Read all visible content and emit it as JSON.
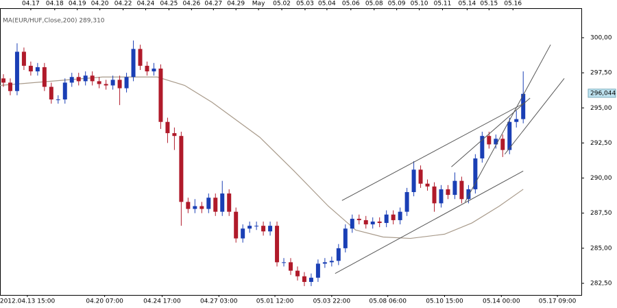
{
  "chart_data": {
    "type": "candlestick",
    "indicator_label": "MA(EUR/HUF,Close,200) 289,310",
    "last_price": {
      "value": 296.044,
      "label": "296,044"
    },
    "up_color": "#1a3fb5",
    "down_color": "#b01a2a",
    "ma_color": "#a89a8a",
    "trendline_color": "#555555",
    "grid": false,
    "xlim": [
      0,
      85
    ],
    "ylim": [
      281.67,
      302.1
    ],
    "yticks": [
      {
        "value": 282.5,
        "label": "282,50"
      },
      {
        "value": 285,
        "label": "285,00"
      },
      {
        "value": 287.5,
        "label": "287,50"
      },
      {
        "value": 290,
        "label": "290,00"
      },
      {
        "value": 292.5,
        "label": "292,50"
      },
      {
        "value": 295,
        "label": "295,00"
      },
      {
        "value": 297.5,
        "label": "297,50"
      },
      {
        "value": 300,
        "label": "300,00"
      }
    ],
    "top_xticks": [
      {
        "value": 4.5,
        "label": "04.17"
      },
      {
        "value": 8,
        "label": "04.18"
      },
      {
        "value": 11.3,
        "label": "04.19"
      },
      {
        "value": 14.6,
        "label": "04.20"
      },
      {
        "value": 18,
        "label": "04.22"
      },
      {
        "value": 21.3,
        "label": "04.24"
      },
      {
        "value": 24.7,
        "label": "04.25"
      },
      {
        "value": 28,
        "label": "04.26"
      },
      {
        "value": 31.2,
        "label": "04.27"
      },
      {
        "value": 34.5,
        "label": "04.29"
      },
      {
        "value": 37.8,
        "label": "May"
      },
      {
        "value": 41.2,
        "label": "05.02"
      },
      {
        "value": 44.6,
        "label": "05.03"
      },
      {
        "value": 47.8,
        "label": "05.04"
      },
      {
        "value": 51.3,
        "label": "05.06"
      },
      {
        "value": 54.7,
        "label": "05.08"
      },
      {
        "value": 58,
        "label": "05.09"
      },
      {
        "value": 61.3,
        "label": "05.10"
      },
      {
        "value": 64.7,
        "label": "05.11"
      },
      {
        "value": 68.3,
        "label": "05.14"
      },
      {
        "value": 71.5,
        "label": "05.15"
      },
      {
        "value": 75,
        "label": "05.16"
      }
    ],
    "xticks": [
      {
        "value": 4,
        "label": "2012.04.13 15:00"
      },
      {
        "value": 15.3,
        "label": "04.20 07:00"
      },
      {
        "value": 23.7,
        "label": "04.24 17:00"
      },
      {
        "value": 32,
        "label": "04.27 03:00"
      },
      {
        "value": 40.2,
        "label": "05.01 12:00"
      },
      {
        "value": 48.5,
        "label": "05.03 22:00"
      },
      {
        "value": 56.7,
        "label": "05.08 06:00"
      },
      {
        "value": 65,
        "label": "05.10 15:00"
      },
      {
        "value": 73.3,
        "label": "05.14 00:00"
      },
      {
        "value": 81.5,
        "label": "05.17 09:00"
      }
    ],
    "x": [
      0.5,
      1.5,
      2.5,
      3.5,
      4.5,
      5.5,
      6.5,
      7.5,
      8.5,
      9.5,
      10.5,
      11.5,
      12.5,
      13.5,
      14.5,
      15.5,
      16.5,
      17.5,
      18.5,
      19.5,
      20.5,
      21.5,
      22.5,
      23.5,
      24.5,
      25.5,
      26.5,
      27.5,
      28.5,
      29.5,
      30.5,
      31.5,
      32.5,
      33.5,
      34.5,
      35.5,
      36.5,
      37.5,
      38.5,
      39.5,
      40.5,
      41.5,
      42.5,
      43.5,
      44.5,
      45.5,
      46.5,
      47.5,
      48.5,
      49.5,
      50.5,
      51.5,
      52.5,
      53.5,
      54.5,
      55.5,
      56.5,
      57.5,
      58.5,
      59.5,
      60.5,
      61.5,
      62.5,
      63.5,
      64.5,
      65.5,
      66.5,
      67.5,
      68.5,
      69.5,
      70.5,
      71.5,
      72.5,
      73.5,
      74.5,
      75.5,
      76.5
    ],
    "open": [
      297.1,
      296.8,
      296.2,
      299.0,
      298.0,
      297.6,
      297.9,
      296.5,
      295.6,
      295.6,
      296.8,
      297.2,
      296.9,
      297.3,
      296.9,
      296.7,
      296.6,
      297.0,
      296.4,
      297.2,
      299.2,
      298.0,
      297.6,
      297.8,
      294.0,
      293.2,
      293.0,
      288.3,
      287.8,
      288.0,
      287.8,
      288.6,
      287.6,
      288.9,
      287.6,
      285.7,
      286.4,
      286.6,
      286.6,
      286.2,
      286.6,
      284.0,
      284.0,
      283.4,
      283.0,
      282.6,
      282.9,
      283.9,
      284.0,
      284.1,
      285.0,
      286.4,
      287.1,
      287.0,
      286.7,
      286.9,
      286.8,
      287.4,
      287.0,
      287.6,
      289.0,
      290.6,
      289.6,
      289.4,
      288.2,
      289.2,
      288.8,
      289.8,
      288.5,
      289.2,
      291.4,
      293.0,
      292.4,
      292.8,
      292.0,
      294.0,
      294.2
    ],
    "high": [
      297.4,
      297.1,
      299.6,
      299.3,
      298.3,
      298.2,
      298.2,
      296.8,
      295.9,
      297.1,
      297.5,
      297.5,
      297.6,
      297.6,
      297.2,
      297.0,
      297.3,
      297.3,
      297.5,
      299.8,
      299.5,
      298.3,
      298.2,
      298.1,
      294.3,
      293.6,
      293.3,
      288.6,
      288.5,
      288.3,
      288.9,
      288.9,
      289.8,
      289.2,
      287.9,
      286.7,
      286.9,
      286.9,
      286.9,
      286.9,
      286.9,
      284.3,
      284.3,
      283.7,
      283.3,
      283.2,
      284.2,
      284.3,
      284.4,
      285.3,
      286.7,
      287.4,
      287.4,
      287.3,
      287.2,
      287.2,
      287.7,
      287.7,
      287.9,
      289.3,
      291.2,
      290.9,
      289.9,
      289.7,
      289.5,
      289.5,
      290.4,
      290.1,
      289.5,
      291.7,
      293.3,
      293.3,
      293.1,
      293.1,
      294.3,
      294.8,
      297.6
    ],
    "low": [
      296.5,
      295.9,
      295.9,
      297.7,
      297.3,
      297.3,
      296.2,
      295.3,
      295.3,
      295.3,
      296.5,
      296.6,
      296.6,
      296.6,
      296.4,
      296.3,
      296.3,
      295.2,
      296.1,
      296.9,
      297.7,
      297.3,
      297.3,
      293.5,
      292.5,
      292.0,
      286.6,
      287.5,
      287.5,
      287.5,
      287.5,
      287.3,
      287.3,
      287.3,
      285.4,
      285.4,
      286.1,
      286.3,
      285.9,
      285.9,
      283.7,
      283.7,
      283.1,
      282.7,
      282.3,
      282.3,
      282.6,
      283.6,
      283.7,
      283.8,
      284.7,
      286.1,
      286.7,
      286.4,
      286.4,
      286.5,
      286.5,
      286.7,
      286.7,
      287.3,
      288.7,
      289.3,
      289.1,
      287.6,
      287.9,
      288.5,
      288.5,
      288.2,
      288.2,
      288.9,
      291.1,
      292.1,
      292.1,
      291.5,
      291.7,
      293.6,
      293.9
    ],
    "close": [
      296.8,
      296.2,
      299.0,
      298.0,
      297.6,
      297.9,
      296.5,
      295.6,
      295.6,
      296.8,
      297.2,
      296.9,
      297.3,
      296.9,
      296.7,
      296.6,
      297.0,
      296.4,
      297.2,
      299.2,
      298.0,
      297.6,
      297.8,
      294.0,
      293.2,
      293.0,
      288.3,
      287.8,
      288.0,
      287.8,
      288.6,
      287.6,
      288.9,
      287.6,
      285.7,
      286.4,
      286.6,
      286.6,
      286.2,
      286.6,
      284.0,
      284.0,
      283.4,
      283.0,
      282.6,
      282.9,
      283.9,
      284.0,
      284.1,
      285.0,
      286.4,
      287.1,
      287.0,
      286.7,
      286.9,
      286.8,
      287.4,
      287.0,
      287.6,
      289.0,
      290.6,
      289.6,
      289.4,
      288.2,
      289.2,
      288.8,
      289.8,
      288.5,
      289.2,
      291.4,
      293.0,
      292.4,
      292.8,
      292.0,
      294.0,
      294.2,
      296.0
    ],
    "ma": {
      "x": [
        0,
        15,
        23,
        27,
        31,
        38,
        43,
        48,
        52,
        56,
        60,
        65,
        69,
        73,
        76.5
      ],
      "values": [
        296.6,
        297.2,
        297.2,
        296.6,
        295.4,
        292.9,
        290.5,
        288.0,
        286.3,
        285.8,
        285.7,
        286.0,
        286.8,
        288.0,
        289.2
      ]
    },
    "trendlines": [
      {
        "x": [
          50,
          76.5
        ],
        "values": [
          288.4,
          295.3
        ]
      },
      {
        "x": [
          68,
          80.5
        ],
        "values": [
          288.3,
          299.5
        ]
      },
      {
        "x": [
          73.8,
          82.5
        ],
        "values": [
          291.7,
          297.1
        ]
      },
      {
        "x": [
          49,
          76.5
        ],
        "values": [
          283.2,
          290.5
        ]
      },
      {
        "x": [
          66,
          77.5
        ],
        "values": [
          290.8,
          295.7
        ]
      }
    ]
  }
}
